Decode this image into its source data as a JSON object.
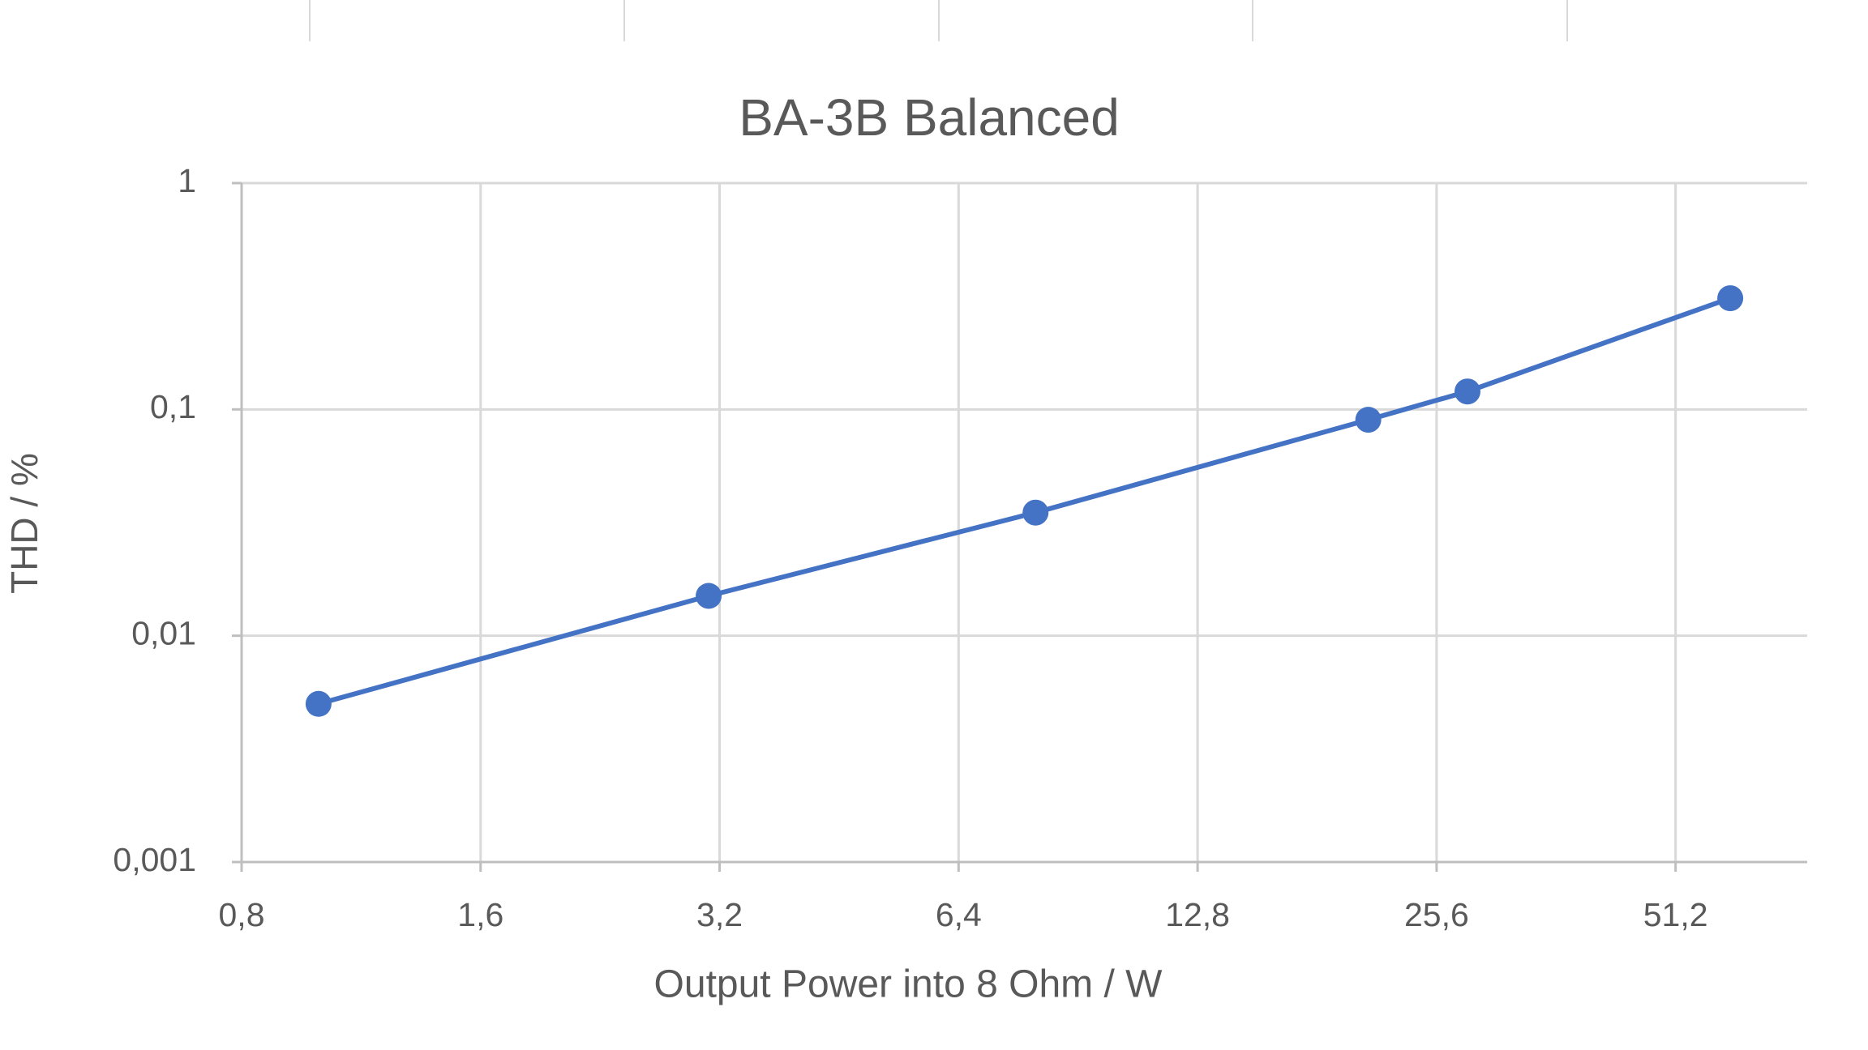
{
  "chart_data": {
    "type": "line",
    "title": "BA-3B Balanced",
    "x_label": "Output Power into 8 Ohm  / W",
    "y_label": "THD / %",
    "x": [
      1,
      3.1,
      8,
      21,
      28,
      60
    ],
    "series": [
      {
        "name": "BA-3B Balanced",
        "color": "#4472c4",
        "values": [
          0.005,
          0.015,
          0.035,
          0.09,
          0.12,
          0.31
        ]
      }
    ],
    "xlim": [
      0.8,
      75
    ],
    "xticks": [
      {
        "value": 0.8,
        "label": "0,8"
      },
      {
        "value": 1.6,
        "label": "1,6"
      },
      {
        "value": 3.2,
        "label": "3,2"
      },
      {
        "value": 6.4,
        "label": "6,4"
      },
      {
        "value": 12.8,
        "label": "12,8"
      },
      {
        "value": 25.6,
        "label": "25,6"
      },
      {
        "value": 51.2,
        "label": "51,2"
      }
    ],
    "ylim": [
      0.001,
      1
    ],
    "yticks": [
      {
        "value": 0.001,
        "label": "0,001"
      },
      {
        "value": 0.01,
        "label": "0,01"
      },
      {
        "value": 0.1,
        "label": "0,1"
      },
      1
    ],
    "xscale": "log",
    "xbase": 2,
    "yscale": "log",
    "grid": true
  }
}
